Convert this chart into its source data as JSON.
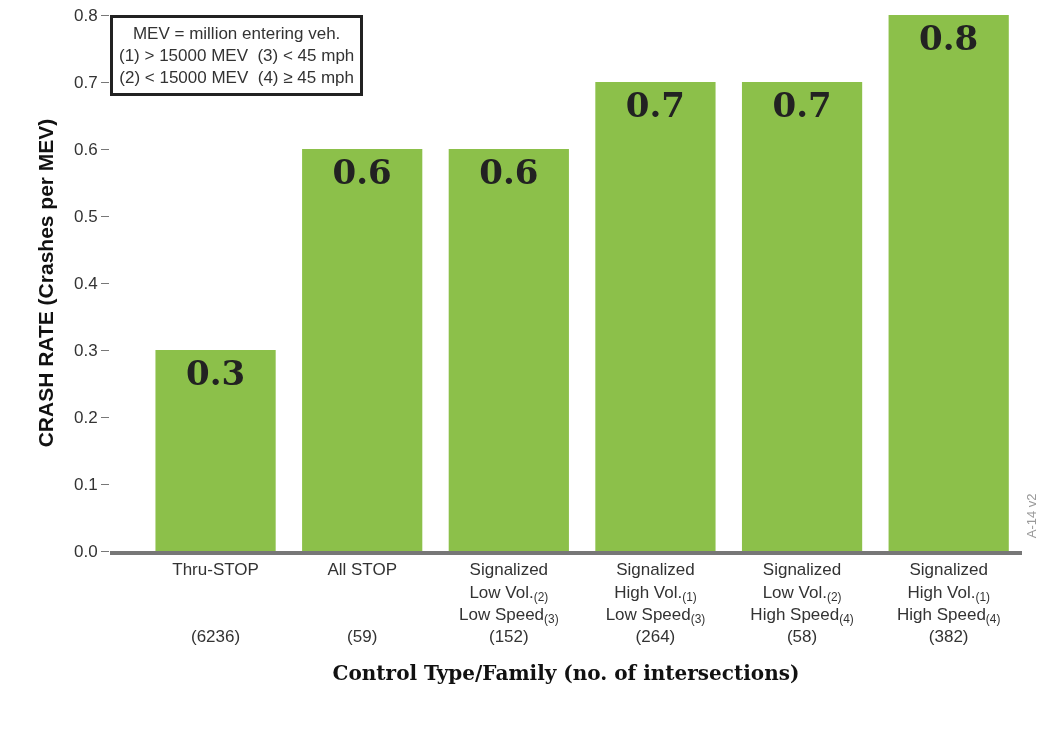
{
  "chart_data": {
    "type": "bar",
    "xlabel": "Control Type/Family (no. of intersections)",
    "ylabel": "CRASH RATE (Crashes per MEV)",
    "categories": [
      "Thru-STOP\n\n\n(6236)",
      "All STOP\n\n\n(59)",
      "Signalized\nLow Vol.$_{(2)}$\nLow Speed$_{(3)}$\n(152)",
      "Signalized\nHigh Vol.$_{(1)}$\nLow Speed$_{(3)}$\n(264)",
      "Signalized\nLow Vol.$_{(2)}$\nHigh Speed$_{(4)}$\n(58)",
      "Signalized\nHigh Vol.$_{(1)}$\nHigh Speed$_{(4)}$\n(382)"
    ],
    "values": [
      0.3,
      0.6,
      0.6,
      0.7,
      0.7,
      0.8
    ],
    "color": "#8cc04a",
    "data_labels": true,
    "ylim": [
      0,
      0.8
    ],
    "yticks": [
      {
        "value": 0,
        "label": "0.0"
      },
      0.1,
      0.2,
      0.3,
      0.4,
      0.5,
      0.6,
      0.7,
      0.8
    ],
    "grid": false,
    "annotations": [
      "MEV = million entering veh.\n(1) > 15000 MEV  (3) < 45 mph\n(2) < 15000 MEV  (4) ≥ 45 mph",
      "A-14 v2"
    ]
  }
}
